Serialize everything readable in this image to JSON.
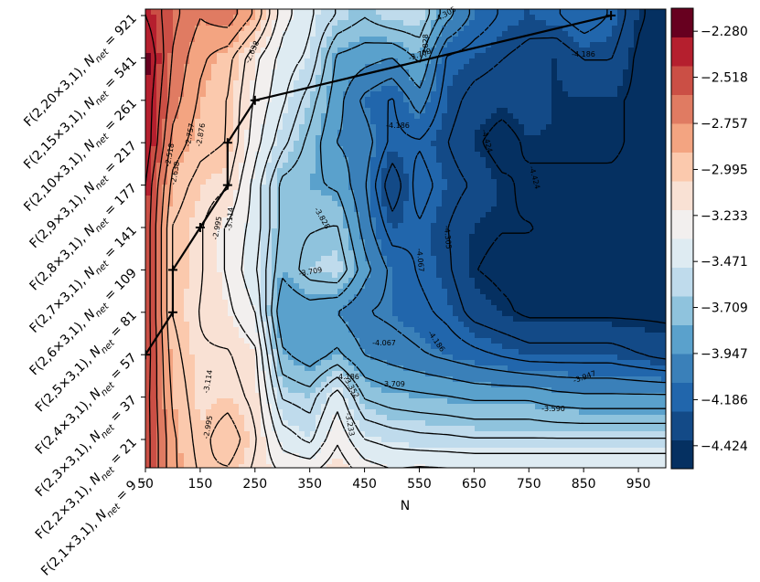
{
  "chart_data": {
    "type": "contour",
    "title": "",
    "xlabel": "N",
    "ylabel": "",
    "x_ticks": [
      "50",
      "150",
      "250",
      "350",
      "450",
      "550",
      "650",
      "750",
      "850",
      "950"
    ],
    "x_values": [
      50,
      150,
      250,
      350,
      450,
      550,
      650,
      750,
      850,
      950
    ],
    "xlim": [
      50,
      1000
    ],
    "y_tick_labels": [
      {
        "main": "F(2,1×3,1),",
        "sub_base": "N",
        "sub": "net",
        "value": "= 9"
      },
      {
        "main": "F(2,2×3,1),",
        "sub_base": "N",
        "sub": "net",
        "value": "= 21"
      },
      {
        "main": "F(2,3×3,1),",
        "sub_base": "N",
        "sub": "net",
        "value": "= 37"
      },
      {
        "main": "F(2,4×3,1),",
        "sub_base": "N",
        "sub": "net",
        "value": "= 57"
      },
      {
        "main": "F(2,5×3,1),",
        "sub_base": "N",
        "sub": "net",
        "value": "= 81"
      },
      {
        "main": "F(2,6×3,1),",
        "sub_base": "N",
        "sub": "net",
        "value": "= 109"
      },
      {
        "main": "F(2,7×3,1),",
        "sub_base": "N",
        "sub": "net",
        "value": "= 141"
      },
      {
        "main": "F(2,8×3,1),",
        "sub_base": "N",
        "sub": "net",
        "value": "= 177"
      },
      {
        "main": "F(2,9×3,1),",
        "sub_base": "N",
        "sub": "net",
        "value": "= 217"
      },
      {
        "main": "F(2,10×3,1),",
        "sub_base": "N",
        "sub": "net",
        "value": "= 261"
      },
      {
        "main": "F(2,15×3,1),",
        "sub_base": "N",
        "sub": "net",
        "value": "= 541"
      },
      {
        "main": "F(2,20×3,1),",
        "sub_base": "N",
        "sub": "net",
        "value": "= 921"
      }
    ],
    "colorbar": {
      "ticks": [
        "-2.280",
        "-2.518",
        "-2.757",
        "-2.995",
        "-3.233",
        "-3.471",
        "-3.709",
        "-3.947",
        "-4.186",
        "-4.424"
      ],
      "levels": [
        -2.28,
        -2.518,
        -2.757,
        -2.995,
        -3.233,
        -3.471,
        -3.709,
        -3.947,
        -4.186,
        -4.424
      ],
      "range": [
        -4.543,
        -2.161
      ],
      "colors": [
        "#053061",
        "#134a87",
        "#2166ac",
        "#3a80b9",
        "#5aa1cc",
        "#8fc3dd",
        "#bfdbec",
        "#deebf2",
        "#f2efee",
        "#f9e1d4",
        "#fbc9ad",
        "#f3a481",
        "#e07b62",
        "#cb4f45",
        "#b51f2e",
        "#67001f"
      ]
    },
    "z_grid_rows_bottom_to_top": [
      [
        -2.45,
        -2.85,
        -3.0,
        -3.05,
        -3.15,
        -3.2,
        -3.18,
        -3.1,
        -3.22,
        -3.28,
        -3.24,
        -3.25,
        -3.25,
        -3.25,
        -3.25,
        -3.25,
        -3.25,
        -3.25,
        -3.25,
        -3.25
      ],
      [
        -2.45,
        -2.85,
        -3.05,
        -2.9,
        -3.1,
        -3.4,
        -3.5,
        -3.25,
        -3.47,
        -3.52,
        -3.55,
        -3.56,
        -3.58,
        -3.58,
        -3.58,
        -3.58,
        -3.58,
        -3.58,
        -3.58,
        -3.58
      ],
      [
        -2.45,
        -2.9,
        -3.08,
        -3.05,
        -3.15,
        -3.6,
        -3.65,
        -3.4,
        -3.72,
        -3.78,
        -3.8,
        -3.82,
        -3.85,
        -3.85,
        -3.85,
        -3.9,
        -3.92,
        -3.92,
        -3.92,
        -3.92
      ],
      [
        -2.42,
        -2.95,
        -3.1,
        -3.1,
        -3.2,
        -3.8,
        -3.9,
        -3.8,
        -3.95,
        -4.0,
        -4.05,
        -4.1,
        -4.15,
        -4.2,
        -4.25,
        -4.25,
        -4.25,
        -4.25,
        -4.3,
        -4.35
      ],
      [
        -2.42,
        -3.0,
        -3.12,
        -3.2,
        -3.35,
        -3.95,
        -3.9,
        -3.95,
        -4.06,
        -4.1,
        -4.15,
        -4.22,
        -4.35,
        -4.4,
        -4.45,
        -4.45,
        -4.45,
        -4.45,
        -4.45,
        -4.45
      ],
      [
        -2.42,
        -3.0,
        -3.1,
        -3.25,
        -3.45,
        -3.8,
        -3.65,
        -3.6,
        -3.9,
        -4.1,
        -4.2,
        -4.28,
        -4.42,
        -4.45,
        -4.45,
        -4.5,
        -4.5,
        -4.45,
        -4.45,
        -4.45
      ],
      [
        -2.42,
        -3.0,
        -3.1,
        -3.25,
        -3.4,
        -3.75,
        -3.72,
        -3.7,
        -4.0,
        -4.25,
        -4.2,
        -4.3,
        -4.4,
        -4.42,
        -4.42,
        -4.44,
        -4.44,
        -4.44,
        -4.45,
        -4.45
      ],
      [
        -2.4,
        -2.92,
        -3.05,
        -3.1,
        -3.4,
        -3.75,
        -3.8,
        -3.85,
        -4.05,
        -4.4,
        -4.12,
        -4.25,
        -4.32,
        -4.4,
        -4.45,
        -4.45,
        -4.45,
        -4.45,
        -4.45,
        -4.48
      ],
      [
        -2.3,
        -2.8,
        -2.95,
        -3.0,
        -3.3,
        -3.55,
        -3.75,
        -3.95,
        -4.0,
        -4.22,
        -4.2,
        -4.3,
        -4.4,
        -4.48,
        -4.4,
        -4.4,
        -4.4,
        -4.4,
        -4.45,
        -4.48
      ],
      [
        -2.3,
        -2.7,
        -2.9,
        -3.0,
        -3.25,
        -3.45,
        -3.65,
        -3.9,
        -4.1,
        -4.2,
        -4.0,
        -4.25,
        -4.35,
        -4.38,
        -4.35,
        -4.4,
        -4.4,
        -4.4,
        -4.45,
        -4.48
      ],
      [
        -2.25,
        -2.65,
        -2.85,
        -2.95,
        -3.2,
        -3.4,
        -3.5,
        -3.85,
        -3.9,
        -3.95,
        -3.8,
        -4.2,
        -4.25,
        -4.3,
        -4.35,
        -4.4,
        -4.3,
        -4.3,
        -4.45,
        -4.5
      ],
      [
        -2.4,
        -2.6,
        -2.75,
        -2.68,
        -2.9,
        -3.3,
        -3.45,
        -3.6,
        -3.7,
        -3.6,
        -3.6,
        -3.9,
        -4.1,
        -4.2,
        -4.25,
        -4.2,
        -4.1,
        -4.2,
        -4.4,
        -4.5
      ]
    ],
    "contour_labels": [
      "-2.518",
      "-2.757",
      "-2.876",
      "-2.638",
      "-3.114",
      "-2.995",
      "-3.114",
      "-2.995",
      "-3.828",
      "-3.709",
      "-4.067",
      "-4.186",
      "-4.305",
      "-4.186",
      "-4.424",
      "-4.424",
      "-4.067",
      "-4.186",
      "-3.709",
      "-3.352",
      "-3.233",
      "-3.590",
      "-3.947",
      "-4.305",
      "-4.186",
      "-3.709",
      "-3.828",
      "-2.638"
    ],
    "optimal_path": [
      {
        "x": 50,
        "y": "F(2,4×3,1)"
      },
      {
        "x": 100,
        "y": "F(2,5×3,1)"
      },
      {
        "x": 100,
        "y": "F(2,6×3,1)"
      },
      {
        "x": 150,
        "y": "F(2,7×3,1)"
      },
      {
        "x": 200,
        "y": "F(2,8×3,1)"
      },
      {
        "x": 200,
        "y": "F(2,9×3,1)"
      },
      {
        "x": 250,
        "y": "F(2,10×3,1)"
      },
      {
        "x": 900,
        "y": "F(2,20×3,1)"
      }
    ],
    "grid": false,
    "colormap": "RdBu"
  }
}
